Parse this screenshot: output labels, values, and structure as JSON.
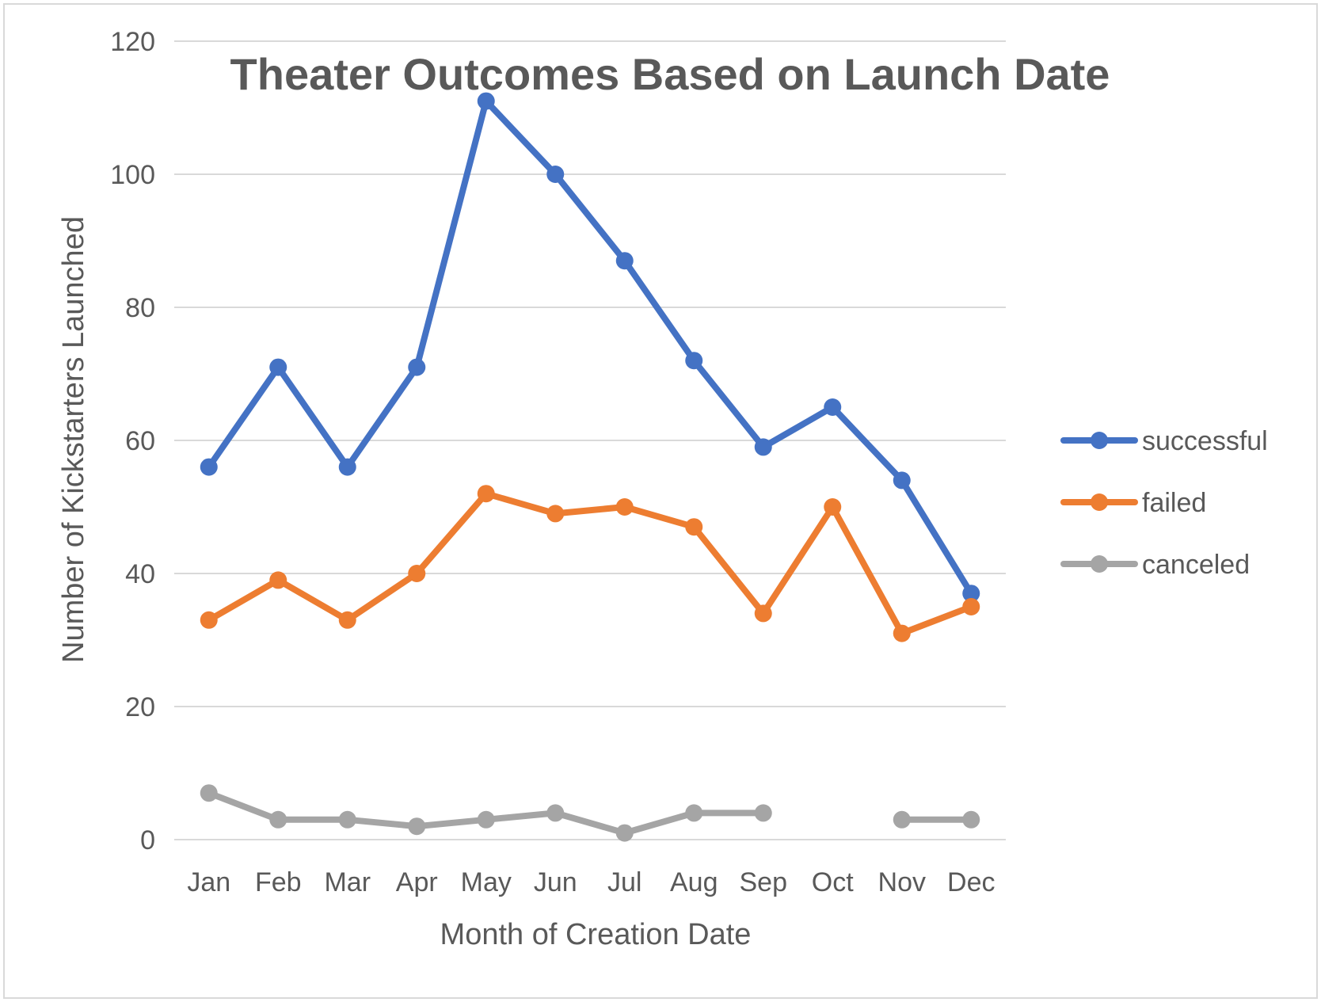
{
  "chart_data": {
    "type": "line",
    "title": "Theater Outcomes Based on Launch Date",
    "xlabel": "Month of Creation Date",
    "ylabel": "Number of Kickstarters Launched",
    "categories": [
      "Jan",
      "Feb",
      "Mar",
      "Apr",
      "May",
      "Jun",
      "Jul",
      "Aug",
      "Sep",
      "Oct",
      "Nov",
      "Dec"
    ],
    "ylim": [
      0,
      120
    ],
    "yticks": [
      0,
      20,
      40,
      60,
      80,
      100,
      120
    ],
    "grid": true,
    "legend": "right",
    "series": [
      {
        "name": "successful",
        "color": "#4472C4",
        "values": [
          56,
          71,
          56,
          71,
          111,
          100,
          87,
          72,
          59,
          65,
          54,
          37
        ]
      },
      {
        "name": "failed",
        "color": "#ED7D31",
        "values": [
          33,
          39,
          33,
          40,
          52,
          49,
          50,
          47,
          34,
          50,
          31,
          35
        ]
      },
      {
        "name": "canceled",
        "color": "#A5A5A5",
        "values": [
          7,
          3,
          3,
          2,
          3,
          4,
          1,
          4,
          4,
          null,
          3,
          3
        ]
      }
    ]
  }
}
